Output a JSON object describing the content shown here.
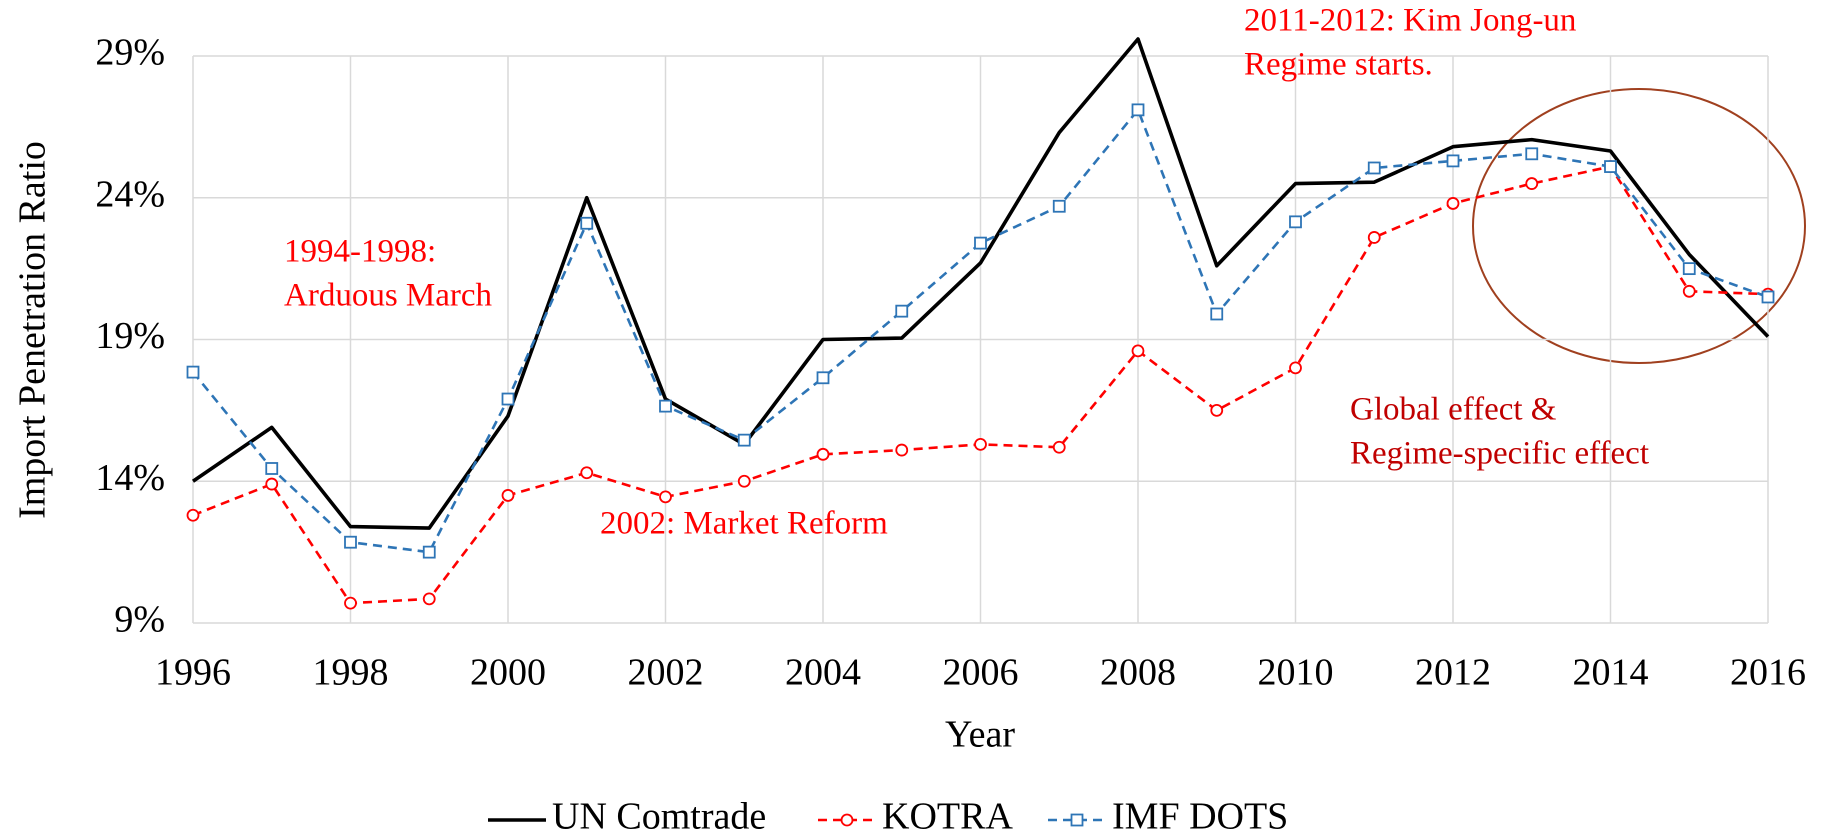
{
  "chart_data": {
    "type": "line",
    "x_label": "Year",
    "y_label": "Import Penetration Ratio",
    "x": [
      1996,
      1997,
      1998,
      1999,
      2000,
      2001,
      2002,
      2003,
      2004,
      2005,
      2006,
      2007,
      2008,
      2009,
      2010,
      2011,
      2012,
      2013,
      2014,
      2015,
      2016
    ],
    "xlim": [
      1996,
      2016
    ],
    "xticks": [
      1996,
      1998,
      2000,
      2002,
      2004,
      2006,
      2008,
      2010,
      2012,
      2014,
      2016
    ],
    "ylim": [
      9,
      29
    ],
    "yticks": [
      {
        "value": 9,
        "label": "9%"
      },
      {
        "value": 14,
        "label": "14%"
      },
      {
        "value": 19,
        "label": "19%"
      },
      {
        "value": 24,
        "label": "24%"
      },
      {
        "value": 29,
        "label": "29%"
      }
    ],
    "grid": true,
    "legend": "bottom",
    "series": [
      {
        "name": "UN Comtrade",
        "color": "#000000",
        "dash": false,
        "marker": "none",
        "values": [
          14.0,
          15.9,
          12.4,
          12.35,
          16.3,
          24.0,
          16.9,
          15.3,
          19.0,
          19.05,
          21.7,
          26.3,
          29.6,
          21.6,
          24.5,
          24.55,
          25.8,
          26.05,
          25.65,
          22.0,
          19.1
        ]
      },
      {
        "name": "KOTRA",
        "color": "#ff0000",
        "dash": true,
        "marker": "circle",
        "values": [
          12.8,
          13.9,
          9.7,
          9.85,
          13.5,
          14.3,
          13.45,
          14.0,
          14.95,
          15.1,
          15.3,
          15.2,
          18.6,
          16.5,
          18.0,
          22.6,
          23.8,
          24.5,
          25.1,
          20.7,
          20.6
        ]
      },
      {
        "name": "IMF DOTS",
        "color": "#2e75b6",
        "dash": true,
        "marker": "square",
        "values": [
          17.85,
          14.45,
          11.85,
          11.5,
          16.9,
          23.1,
          16.65,
          15.45,
          17.65,
          20.0,
          22.4,
          23.7,
          27.1,
          19.9,
          23.15,
          25.05,
          25.3,
          25.55,
          25.1,
          21.5,
          20.5
        ]
      }
    ],
    "annotations": [
      {
        "lines": [
          "2011-2012: Kim Jong-un",
          "Regime starts."
        ],
        "color": "#ff0000"
      },
      {
        "lines": [
          "1994-1998:",
          "Arduous March"
        ],
        "color": "#ff0000"
      },
      {
        "lines": [
          "2002: Market Reform"
        ],
        "color": "#ff0000"
      },
      {
        "lines": [
          "Global effect &",
          "Regime-specific effect"
        ],
        "color": "#c00000"
      }
    ]
  }
}
